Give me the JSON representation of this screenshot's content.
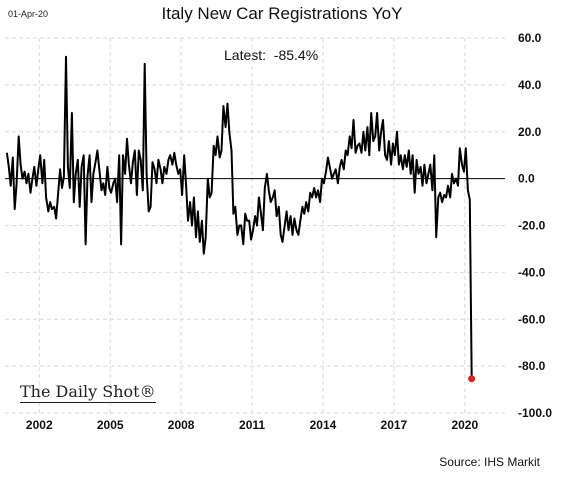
{
  "header": {
    "date_stamp": "01-Apr-20",
    "title": "Italy New Car Registrations YoY",
    "latest_label": "Latest:  -85.4%"
  },
  "branding": {
    "logo_text": "The Daily Shot®"
  },
  "footer": {
    "source": "Source: IHS Markit"
  },
  "colors": {
    "line": "#000000",
    "marker": "#e02020",
    "zero_line": "#000000",
    "grid": "#d9d9d9"
  },
  "chart_data": {
    "type": "line",
    "title": "Italy New Car Registrations YoY",
    "xlabel": "",
    "ylabel": "",
    "x_range": [
      2000.55,
      2021.7
    ],
    "ylim": [
      -100,
      60
    ],
    "yticks": [
      60,
      40,
      20,
      0,
      -20,
      -40,
      -60,
      -80,
      -100
    ],
    "ytick_labels": [
      "60.0",
      "40.0",
      "20.0",
      "0.0",
      "-20.0",
      "-40.0",
      "-60.0",
      "-80.0",
      "-100.0"
    ],
    "xticks": [
      2002,
      2005,
      2008,
      2011,
      2014,
      2017,
      2020
    ],
    "xtick_labels": [
      "2002",
      "2005",
      "2008",
      "2011",
      "2014",
      "2017",
      "2020"
    ],
    "grid": true,
    "legend": "none",
    "latest_value": -85.4,
    "series": [
      {
        "values": [
          [
            2000.63,
            11
          ],
          [
            2000.71,
            5
          ],
          [
            2000.79,
            -3
          ],
          [
            2000.88,
            9
          ],
          [
            2000.96,
            -13
          ],
          [
            2001.04,
            -2
          ],
          [
            2001.13,
            18
          ],
          [
            2001.21,
            6
          ],
          [
            2001.29,
            0
          ],
          [
            2001.38,
            3
          ],
          [
            2001.46,
            -2
          ],
          [
            2001.54,
            2
          ],
          [
            2001.63,
            -6
          ],
          [
            2001.71,
            0
          ],
          [
            2001.79,
            5
          ],
          [
            2001.88,
            -3
          ],
          [
            2001.96,
            4
          ],
          [
            2002.04,
            10
          ],
          [
            2002.13,
            -2
          ],
          [
            2002.21,
            8
          ],
          [
            2002.29,
            -8
          ],
          [
            2002.38,
            -14
          ],
          [
            2002.46,
            -10
          ],
          [
            2002.54,
            -13
          ],
          [
            2002.63,
            -12
          ],
          [
            2002.71,
            -17
          ],
          [
            2002.79,
            -7
          ],
          [
            2002.88,
            4
          ],
          [
            2002.96,
            -4
          ],
          [
            2003.04,
            1
          ],
          [
            2003.13,
            52
          ],
          [
            2003.21,
            5
          ],
          [
            2003.29,
            -4
          ],
          [
            2003.38,
            28
          ],
          [
            2003.46,
            -10
          ],
          [
            2003.54,
            2
          ],
          [
            2003.63,
            8
          ],
          [
            2003.71,
            -12
          ],
          [
            2003.79,
            5
          ],
          [
            2003.88,
            10
          ],
          [
            2003.96,
            -28
          ],
          [
            2004.04,
            1
          ],
          [
            2004.13,
            10
          ],
          [
            2004.21,
            -10
          ],
          [
            2004.29,
            2
          ],
          [
            2004.38,
            7
          ],
          [
            2004.46,
            12
          ],
          [
            2004.54,
            4
          ],
          [
            2004.63,
            -5
          ],
          [
            2004.71,
            -2
          ],
          [
            2004.79,
            -7
          ],
          [
            2004.88,
            5
          ],
          [
            2004.96,
            -4
          ],
          [
            2005.04,
            -6
          ],
          [
            2005.13,
            -2
          ],
          [
            2005.21,
            0
          ],
          [
            2005.29,
            -10
          ],
          [
            2005.38,
            10
          ],
          [
            2005.46,
            -28
          ],
          [
            2005.54,
            10
          ],
          [
            2005.63,
            2
          ],
          [
            2005.71,
            17
          ],
          [
            2005.79,
            6
          ],
          [
            2005.88,
            -2
          ],
          [
            2005.96,
            7
          ],
          [
            2006.04,
            12
          ],
          [
            2006.13,
            -7
          ],
          [
            2006.21,
            12
          ],
          [
            2006.29,
            8
          ],
          [
            2006.38,
            -5
          ],
          [
            2006.46,
            49
          ],
          [
            2006.54,
            2
          ],
          [
            2006.63,
            -14
          ],
          [
            2006.71,
            -12
          ],
          [
            2006.79,
            7
          ],
          [
            2006.88,
            4
          ],
          [
            2006.96,
            -2
          ],
          [
            2007.04,
            8
          ],
          [
            2007.13,
            4
          ],
          [
            2007.21,
            -2
          ],
          [
            2007.29,
            5
          ],
          [
            2007.38,
            2
          ],
          [
            2007.46,
            8
          ],
          [
            2007.54,
            10
          ],
          [
            2007.63,
            6
          ],
          [
            2007.71,
            11
          ],
          [
            2007.79,
            6
          ],
          [
            2007.88,
            2
          ],
          [
            2007.96,
            4
          ],
          [
            2008.04,
            -7
          ],
          [
            2008.13,
            10
          ],
          [
            2008.21,
            -3
          ],
          [
            2008.29,
            -18
          ],
          [
            2008.38,
            -10
          ],
          [
            2008.46,
            -20
          ],
          [
            2008.54,
            -8
          ],
          [
            2008.63,
            -25
          ],
          [
            2008.71,
            -14
          ],
          [
            2008.79,
            -27
          ],
          [
            2008.88,
            -18
          ],
          [
            2008.96,
            -32
          ],
          [
            2009.04,
            -25
          ],
          [
            2009.13,
            0
          ],
          [
            2009.21,
            -8
          ],
          [
            2009.29,
            -6
          ],
          [
            2009.38,
            14
          ],
          [
            2009.46,
            10
          ],
          [
            2009.54,
            18
          ],
          [
            2009.63,
            9
          ],
          [
            2009.71,
            12
          ],
          [
            2009.79,
            31
          ],
          [
            2009.88,
            22
          ],
          [
            2009.96,
            32
          ],
          [
            2010.04,
            20
          ],
          [
            2010.13,
            12
          ],
          [
            2010.21,
            -15
          ],
          [
            2010.29,
            -12
          ],
          [
            2010.38,
            -24
          ],
          [
            2010.46,
            -20
          ],
          [
            2010.54,
            -20
          ],
          [
            2010.63,
            -28
          ],
          [
            2010.71,
            -15
          ],
          [
            2010.79,
            -18
          ],
          [
            2010.88,
            -18
          ],
          [
            2010.96,
            -26
          ],
          [
            2011.04,
            -22
          ],
          [
            2011.13,
            -16
          ],
          [
            2011.21,
            -20
          ],
          [
            2011.29,
            -8
          ],
          [
            2011.38,
            -15
          ],
          [
            2011.46,
            -22
          ],
          [
            2011.54,
            -4
          ],
          [
            2011.63,
            2
          ],
          [
            2011.71,
            -5
          ],
          [
            2011.79,
            -10
          ],
          [
            2011.88,
            -8
          ],
          [
            2011.96,
            -5
          ],
          [
            2012.04,
            -16
          ],
          [
            2012.13,
            -12
          ],
          [
            2012.21,
            -24
          ],
          [
            2012.29,
            -27
          ],
          [
            2012.38,
            -20
          ],
          [
            2012.46,
            -14
          ],
          [
            2012.54,
            -22
          ],
          [
            2012.63,
            -16
          ],
          [
            2012.71,
            -24
          ],
          [
            2012.79,
            -17
          ],
          [
            2012.88,
            -22
          ],
          [
            2012.96,
            -24
          ],
          [
            2013.04,
            -18
          ],
          [
            2013.13,
            -12
          ],
          [
            2013.21,
            -15
          ],
          [
            2013.29,
            -10
          ],
          [
            2013.38,
            -14
          ],
          [
            2013.46,
            -6
          ],
          [
            2013.54,
            -8
          ],
          [
            2013.63,
            -4
          ],
          [
            2013.71,
            -8
          ],
          [
            2013.79,
            -5
          ],
          [
            2013.88,
            -10
          ],
          [
            2013.96,
            0
          ],
          [
            2014.04,
            -2
          ],
          [
            2014.13,
            3
          ],
          [
            2014.21,
            9
          ],
          [
            2014.29,
            5
          ],
          [
            2014.38,
            0
          ],
          [
            2014.46,
            2
          ],
          [
            2014.54,
            4
          ],
          [
            2014.63,
            -2
          ],
          [
            2014.71,
            5
          ],
          [
            2014.79,
            8
          ],
          [
            2014.88,
            4
          ],
          [
            2014.96,
            12
          ],
          [
            2015.04,
            10
          ],
          [
            2015.13,
            18
          ],
          [
            2015.21,
            13
          ],
          [
            2015.29,
            25
          ],
          [
            2015.38,
            11
          ],
          [
            2015.46,
            14
          ],
          [
            2015.54,
            15
          ],
          [
            2015.63,
            11
          ],
          [
            2015.71,
            20
          ],
          [
            2015.79,
            12
          ],
          [
            2015.88,
            22
          ],
          [
            2015.96,
            10
          ],
          [
            2016.04,
            28
          ],
          [
            2016.13,
            16
          ],
          [
            2016.21,
            18
          ],
          [
            2016.29,
            28
          ],
          [
            2016.38,
            12
          ],
          [
            2016.46,
            20
          ],
          [
            2016.54,
            25
          ],
          [
            2016.63,
            10
          ],
          [
            2016.71,
            8
          ],
          [
            2016.79,
            16
          ],
          [
            2016.88,
            6
          ],
          [
            2016.96,
            15
          ],
          [
            2017.04,
            10
          ],
          [
            2017.13,
            20
          ],
          [
            2017.21,
            6
          ],
          [
            2017.29,
            10
          ],
          [
            2017.38,
            4
          ],
          [
            2017.46,
            10
          ],
          [
            2017.54,
            5
          ],
          [
            2017.63,
            12
          ],
          [
            2017.71,
            2
          ],
          [
            2017.79,
            10
          ],
          [
            2017.88,
            -6
          ],
          [
            2017.96,
            8
          ],
          [
            2018.04,
            2
          ],
          [
            2018.13,
            5
          ],
          [
            2018.21,
            -3
          ],
          [
            2018.29,
            6
          ],
          [
            2018.38,
            -2
          ],
          [
            2018.46,
            2
          ],
          [
            2018.54,
            6
          ],
          [
            2018.63,
            -5
          ],
          [
            2018.71,
            10
          ],
          [
            2018.79,
            -25
          ],
          [
            2018.88,
            -8
          ],
          [
            2018.96,
            -6
          ],
          [
            2019.04,
            -10
          ],
          [
            2019.13,
            -7
          ],
          [
            2019.21,
            -8
          ],
          [
            2019.29,
            -3
          ],
          [
            2019.38,
            -8
          ],
          [
            2019.46,
            2
          ],
          [
            2019.54,
            -2
          ],
          [
            2019.63,
            0
          ],
          [
            2019.71,
            -3
          ],
          [
            2019.79,
            13
          ],
          [
            2019.88,
            6
          ],
          [
            2019.96,
            3
          ],
          [
            2020.04,
            13
          ],
          [
            2020.13,
            -5
          ],
          [
            2020.21,
            -9
          ],
          [
            2020.29,
            -85.4
          ]
        ]
      }
    ]
  }
}
